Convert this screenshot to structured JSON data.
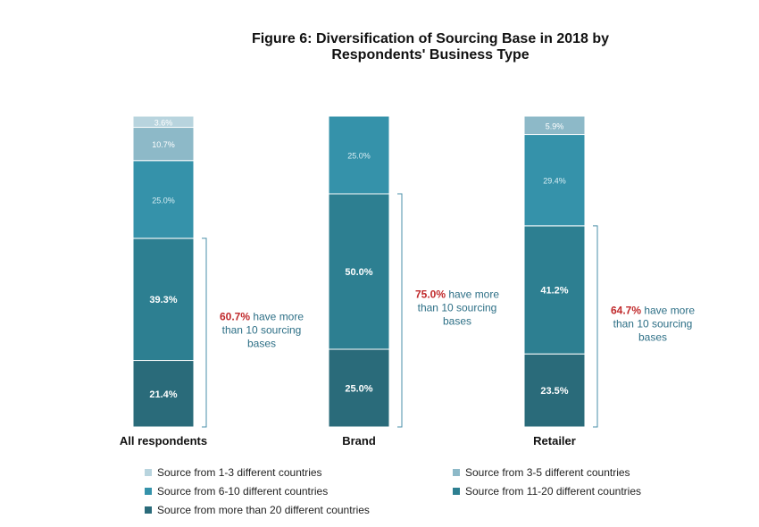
{
  "chart_data": {
    "type": "bar",
    "stacked": true,
    "title_line1": "Figure 6: Diversification of Sourcing Base in 2018 by",
    "title_line2": "Respondents' Business Type",
    "categories": [
      "All respondents",
      "Brand",
      "Retailer"
    ],
    "ylim": [
      0,
      100
    ],
    "series": [
      {
        "name": "Source from more than 20 different countries",
        "color": "#2a6b7a",
        "values": [
          21.4,
          25.0,
          23.5
        ],
        "labels": [
          "21.4%",
          "25.0%",
          "23.5%"
        ]
      },
      {
        "name": "Source from 11-20 different countries",
        "color": "#2d7f91",
        "values": [
          39.3,
          50.0,
          41.2
        ],
        "labels": [
          "39.3%",
          "50.0%",
          "41.2%"
        ]
      },
      {
        "name": "Source from 6-10 different countries",
        "color": "#3592aa",
        "values": [
          25.0,
          25.0,
          29.4
        ],
        "labels": [
          "25.0%",
          "25.0%",
          "29.4%"
        ]
      },
      {
        "name": "Source from 3-5 different countries",
        "color": "#8db9c8",
        "values": [
          10.7,
          0,
          5.9
        ],
        "labels": [
          "10.7%",
          "",
          "5.9%"
        ]
      },
      {
        "name": "Source from 1-3 different countries",
        "color": "#b8d4de",
        "values": [
          3.6,
          0,
          0
        ],
        "labels": [
          "3.6%",
          "",
          ""
        ]
      }
    ],
    "annotations": [
      {
        "pct": "60.7%",
        "rest": "have more",
        "line2": "than 10 sourcing",
        "line3": "bases"
      },
      {
        "pct": "75.0%",
        "rest": "have more",
        "line2": "than 10 sourcing",
        "line3": "bases"
      },
      {
        "pct": "64.7%",
        "rest": "have more",
        "line2": "than 10 sourcing",
        "line3": "bases"
      }
    ],
    "legend": [
      {
        "label": "Source from 1-3 different countries",
        "color": "#b8d4de"
      },
      {
        "label": "Source from 3-5 different countries",
        "color": "#8db9c8"
      },
      {
        "label": "Source from 6-10 different countries",
        "color": "#3592aa"
      },
      {
        "label": "Source from 11-20 different countries",
        "color": "#2d7f91"
      },
      {
        "label": "Source from more than 20 different countries",
        "color": "#2a6b7a"
      }
    ],
    "colors": {
      "highlight": "#c0292b",
      "annotation_text": "#2d6f86",
      "bracket": "#4a8fa8"
    }
  }
}
